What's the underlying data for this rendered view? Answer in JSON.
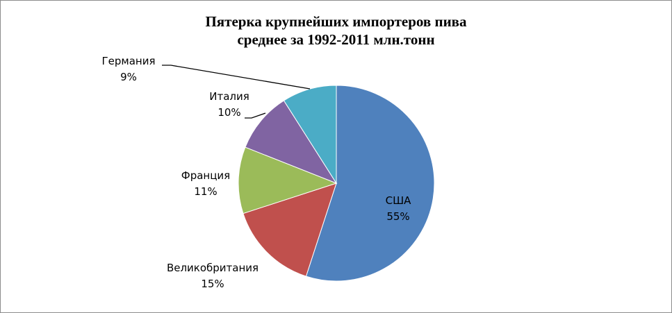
{
  "chart_data": {
    "type": "pie",
    "title": [
      "Пятерка крупнейших импортеров пива",
      "среднее за 1992-2011 млн.тонн"
    ],
    "slices": [
      {
        "name": "США",
        "percent": 55,
        "label": "55%",
        "color": "#4F81BD"
      },
      {
        "name": "Великобритания",
        "percent": 15,
        "label": "15%",
        "color": "#C0504D"
      },
      {
        "name": "Франция",
        "percent": 11,
        "label": "11%",
        "color": "#9BBB59"
      },
      {
        "name": "Италия",
        "percent": 10,
        "label": "10%",
        "color": "#8064A2"
      },
      {
        "name": "Германия",
        "percent": 9,
        "label": "9%",
        "color": "#4BACC6"
      }
    ],
    "legend": "none"
  }
}
